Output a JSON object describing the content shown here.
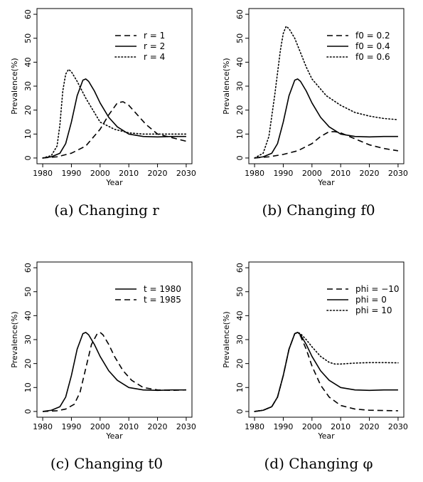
{
  "chart_data": [
    {
      "type": "line",
      "caption": "(a) Changing r",
      "xlabel": "Year",
      "ylabel": "Prevalence(%)",
      "xlim": [
        1980,
        2030
      ],
      "ylim": [
        0,
        60
      ],
      "xticks": [
        1980,
        1990,
        2000,
        2010,
        2020,
        2030
      ],
      "yticks": [
        0,
        10,
        20,
        30,
        40,
        50,
        60
      ],
      "legend_position": "top-right",
      "series": [
        {
          "name": "r = 1",
          "dash": "dashed",
          "x": [
            1980,
            1985,
            1990,
            1995,
            2000,
            2003,
            2006,
            2008,
            2010,
            2013,
            2016,
            2020,
            2025,
            2030
          ],
          "y": [
            0,
            0.5,
            2,
            5,
            12,
            18,
            23,
            23.5,
            22,
            18,
            14,
            10,
            8.5,
            7
          ]
        },
        {
          "name": "r = 2",
          "dash": "solid",
          "x": [
            1980,
            1983,
            1986,
            1988,
            1990,
            1992,
            1994,
            1995,
            1996,
            1998,
            2000,
            2003,
            2006,
            2010,
            2015,
            2020,
            2025,
            2030
          ],
          "y": [
            0,
            0.5,
            2,
            6,
            15,
            26,
            32.5,
            33,
            32,
            28,
            23,
            17,
            13,
            10,
            9,
            8.8,
            9,
            9
          ]
        },
        {
          "name": "r = 4",
          "dash": "dotted",
          "x": [
            1980,
            1983,
            1985,
            1986,
            1987,
            1988,
            1989,
            1990,
            1992,
            1995,
            1998,
            2000,
            2005,
            2010,
            2015,
            2020,
            2025,
            2030
          ],
          "y": [
            0,
            1,
            5,
            14,
            28,
            35,
            37,
            36,
            32,
            25,
            19,
            15,
            12,
            10.5,
            10,
            10,
            10,
            10
          ]
        }
      ]
    },
    {
      "type": "line",
      "caption": "(b) Changing f0",
      "xlabel": "Year",
      "ylabel": "Prevalence(%)",
      "xlim": [
        1980,
        2030
      ],
      "ylim": [
        0,
        60
      ],
      "xticks": [
        1980,
        1990,
        2000,
        2010,
        2020,
        2030
      ],
      "yticks": [
        0,
        10,
        20,
        30,
        40,
        50,
        60
      ],
      "legend_position": "top-right",
      "series": [
        {
          "name": "f0 = 0.2",
          "dash": "dashed",
          "x": [
            1980,
            1985,
            1990,
            1995,
            2000,
            2003,
            2006,
            2008,
            2010,
            2015,
            2020,
            2025,
            2030
          ],
          "y": [
            0,
            0.5,
            1.5,
            3,
            6,
            9,
            11,
            11,
            10.5,
            8,
            5.5,
            4,
            3
          ]
        },
        {
          "name": "f0 = 0.4",
          "dash": "solid",
          "x": [
            1980,
            1983,
            1986,
            1988,
            1990,
            1992,
            1994,
            1995,
            1996,
            1998,
            2000,
            2003,
            2006,
            2010,
            2015,
            2020,
            2025,
            2030
          ],
          "y": [
            0,
            0.5,
            2,
            6,
            15,
            26,
            32.5,
            33,
            32,
            28,
            23,
            17,
            13,
            10,
            9,
            8.8,
            9,
            9
          ]
        },
        {
          "name": "f0 = 0.6",
          "dash": "dotted",
          "x": [
            1980,
            1983,
            1985,
            1987,
            1989,
            1990,
            1991,
            1992,
            1994,
            1996,
            1998,
            2000,
            2005,
            2010,
            2015,
            2020,
            2025,
            2030
          ],
          "y": [
            0,
            2,
            9,
            26,
            45,
            52,
            55,
            54,
            50,
            44,
            38,
            33,
            26,
            22,
            19,
            17.5,
            16.5,
            16
          ]
        }
      ]
    },
    {
      "type": "line",
      "caption": "(c) Changing t0",
      "xlabel": "Year",
      "ylabel": "Prevalence(%)",
      "xlim": [
        1980,
        2030
      ],
      "ylim": [
        0,
        60
      ],
      "xticks": [
        1980,
        1990,
        2000,
        2010,
        2020,
        2030
      ],
      "yticks": [
        0,
        10,
        20,
        30,
        40,
        50,
        60
      ],
      "legend_position": "top-right",
      "series": [
        {
          "name": "t = 1980",
          "dash": "solid",
          "x": [
            1980,
            1983,
            1986,
            1988,
            1990,
            1992,
            1994,
            1995,
            1996,
            1998,
            2000,
            2003,
            2006,
            2010,
            2015,
            2020,
            2025,
            2030
          ],
          "y": [
            0,
            0.5,
            2,
            6,
            15,
            26,
            32.5,
            33,
            32,
            28,
            23,
            17,
            13,
            10,
            9,
            8.8,
            9,
            9
          ]
        },
        {
          "name": "t = 1985",
          "dash": "dashed",
          "x": [
            1980,
            1985,
            1988,
            1991,
            1993,
            1995,
            1997,
            1999,
            2000,
            2001,
            2003,
            2005,
            2008,
            2011,
            2015,
            2020,
            2025,
            2030
          ],
          "y": [
            0,
            0.3,
            1,
            3,
            8,
            18,
            28,
            32.5,
            33,
            32,
            28,
            23,
            17,
            13,
            10,
            9,
            8.8,
            9
          ]
        }
      ]
    },
    {
      "type": "line",
      "caption": "(d) Changing φ",
      "xlabel": "Year",
      "ylabel": "Prevalence(%)",
      "xlim": [
        1980,
        2030
      ],
      "ylim": [
        0,
        60
      ],
      "xticks": [
        1980,
        1990,
        2000,
        2010,
        2020,
        2030
      ],
      "yticks": [
        0,
        10,
        20,
        30,
        40,
        50,
        60
      ],
      "legend_position": "top-right",
      "series": [
        {
          "name": "phi = −10",
          "dash": "dashed",
          "x": [
            1980,
            1983,
            1986,
            1988,
            1990,
            1992,
            1994,
            1995,
            1996,
            1998,
            2000,
            2003,
            2006,
            2010,
            2015,
            2020,
            2025,
            2030
          ],
          "y": [
            0,
            0.5,
            2,
            6,
            15,
            26,
            32.5,
            33,
            31.5,
            26,
            19,
            11,
            6,
            2.5,
            1,
            0.5,
            0.4,
            0.3
          ]
        },
        {
          "name": "phi =  0",
          "dash": "solid",
          "x": [
            1980,
            1983,
            1986,
            1988,
            1990,
            1992,
            1994,
            1995,
            1996,
            1998,
            2000,
            2003,
            2006,
            2010,
            2015,
            2020,
            2025,
            2030
          ],
          "y": [
            0,
            0.5,
            2,
            6,
            15,
            26,
            32.5,
            33,
            32,
            28,
            23,
            17,
            13,
            10,
            9,
            8.8,
            9,
            9
          ]
        },
        {
          "name": "phi = 10",
          "dash": "dotted",
          "x": [
            1980,
            1983,
            1986,
            1988,
            1990,
            1992,
            1994,
            1995,
            1996,
            1998,
            2000,
            2003,
            2006,
            2008,
            2010,
            2015,
            2020,
            2025,
            2030
          ],
          "y": [
            0,
            0.5,
            2,
            6,
            15,
            26,
            32.5,
            33,
            32.5,
            30,
            27,
            23,
            20.5,
            19.8,
            19.8,
            20.2,
            20.4,
            20.4,
            20.3
          ]
        }
      ]
    }
  ]
}
